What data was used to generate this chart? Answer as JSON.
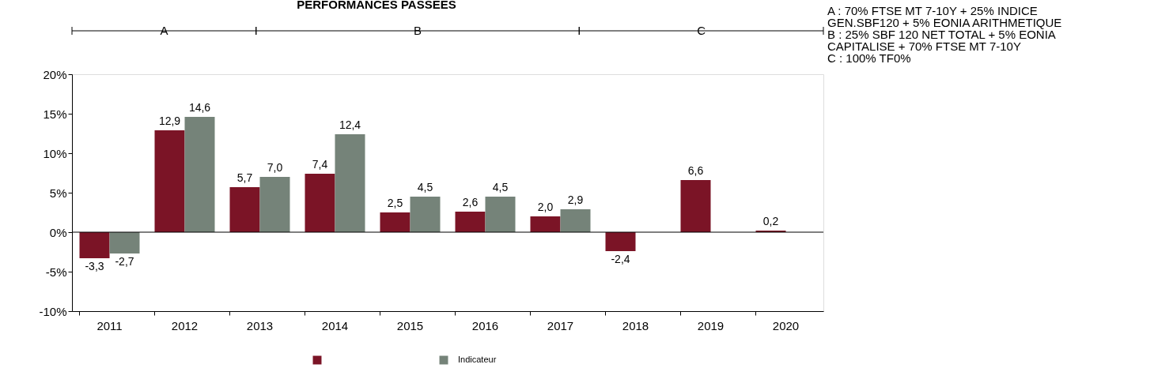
{
  "chart_data": {
    "type": "bar",
    "title": "PERFORMANCES PASSEES",
    "categories": [
      "2011",
      "2012",
      "2013",
      "2014",
      "2015",
      "2016",
      "2017",
      "2018",
      "2019",
      "2020"
    ],
    "series": [
      {
        "color": "#7b1426",
        "values": [
          -3.3,
          12.9,
          5.7,
          7.4,
          2.5,
          2.6,
          2.0,
          -2.4,
          6.6,
          0.2
        ],
        "value_labels": [
          "-3,3",
          "12,9",
          "5,7",
          "7,4",
          "2,5",
          "2,6",
          "2,0",
          "-2,4",
          "6,6",
          "0,2"
        ]
      },
      {
        "name": "Indicateur",
        "color": "#758379",
        "values": [
          -2.7,
          14.6,
          7.0,
          12.4,
          4.5,
          4.5,
          2.9,
          null,
          null,
          null
        ],
        "value_labels": [
          "-2,7",
          "14,6",
          "7,0",
          "12,4",
          "4,5",
          "4,5",
          "2,9",
          null,
          null,
          null
        ]
      }
    ],
    "ylim": [
      -10,
      20
    ],
    "yticks": [
      {
        "value": -10,
        "label": "-10%"
      },
      {
        "value": -5,
        "label": "-5%"
      },
      {
        "value": 0,
        "label": "0%"
      },
      {
        "value": 5,
        "label": "5%"
      },
      {
        "value": 10,
        "label": "10%"
      },
      {
        "value": 15,
        "label": "15%"
      },
      {
        "value": 20,
        "label": "20%"
      }
    ],
    "ref_lines": [
      {
        "axis": "y",
        "value": 0,
        "color": "#000000"
      }
    ],
    "annotations": [
      "A",
      "B",
      "C",
      "A : 70% FTSE MT 7-10Y + 25% INDICE GEN.SBF120 + 5% EONIA ARITHMETIQUE",
      "B : 25% SBF 120 NET TOTAL + 5% EONIA CAPITALISE + 70% FTSE MT 7-10Y",
      "C : 100% TF0%"
    ],
    "legend": "bottom",
    "grid": false
  }
}
